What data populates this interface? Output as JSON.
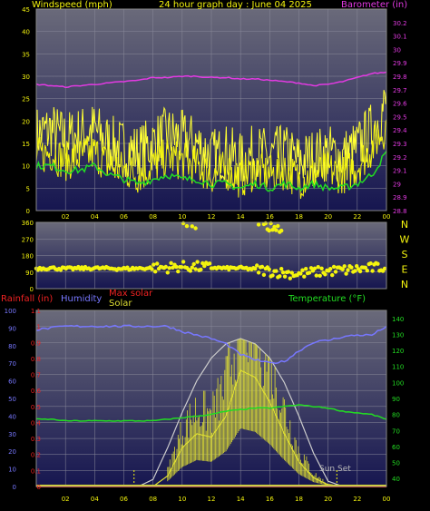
{
  "header": {
    "windspeed_label": "Windspeed (mph)",
    "title": "24 hour graph day : June 04 2025",
    "barometer_label": "Barometer (in)"
  },
  "colors": {
    "wind": "#f4f40e",
    "gust": "#ffff33",
    "avg": "#22dd22",
    "barometer": "#e23ae2",
    "humidity": "#7777ff",
    "maxsolar": "#cccccc",
    "solar": "#dede33",
    "temperature": "#22dd22",
    "rain": "#ee2222",
    "bg_top": "#6a6a7a",
    "bg_bottom": "#161650"
  },
  "labels": {
    "x_ticks": [
      "02",
      "04",
      "06",
      "08",
      "10",
      "12",
      "14",
      "16",
      "18",
      "20",
      "22",
      "00"
    ],
    "direction_letters": [
      "N",
      "W",
      "S",
      "E",
      "N"
    ],
    "rainfall": "Rainfall (in)",
    "humidity": "Humidity",
    "max_solar": "Max solar",
    "solar": "Solar",
    "temperature": "Temperature (°F)",
    "sunset": "Sun Set"
  },
  "chart_data": [
    {
      "type": "line",
      "title": "Windspeed (mph)",
      "xlabel": "hour",
      "ylabel": "Windspeed (mph)",
      "ylim": [
        0,
        45
      ],
      "y_ticks": [
        0,
        5,
        10,
        15,
        20,
        25,
        30,
        35,
        40,
        45
      ],
      "y2label": "Barometer (in)",
      "y2lim": [
        28.8,
        30.3
      ],
      "y2_ticks": [
        "28.8",
        "28.9",
        "29",
        "29.1",
        "29.2",
        "29.3",
        "29.4",
        "29.5",
        "29.6",
        "29.7",
        "29.8",
        "29.9",
        "30",
        "30.1",
        "30.2"
      ],
      "x": [
        0,
        1,
        2,
        3,
        4,
        5,
        6,
        7,
        8,
        9,
        10,
        11,
        12,
        13,
        14,
        15,
        16,
        17,
        18,
        19,
        20,
        21,
        22,
        23,
        24
      ],
      "series": [
        {
          "values": [
            17,
            18,
            16,
            17,
            18,
            15,
            14,
            13,
            15,
            17,
            16,
            15,
            12,
            13,
            11,
            13,
            12,
            13,
            11,
            12,
            13,
            12,
            14,
            18,
            24
          ]
        },
        {
          "values": [
            12,
            13,
            11,
            12,
            13,
            10,
            9,
            8,
            10,
            12,
            11,
            10,
            8,
            9,
            7,
            9,
            8,
            9,
            7,
            8,
            9,
            8,
            10,
            14,
            19
          ]
        },
        {
          "values": [
            10,
            10,
            9,
            9,
            10,
            8,
            7,
            6,
            7,
            8,
            7,
            7,
            6,
            6,
            5,
            6,
            5,
            6,
            5,
            6,
            5,
            5,
            6,
            8,
            13
          ]
        },
        {
          "values": [
            29.74,
            29.73,
            29.72,
            29.73,
            29.74,
            29.75,
            29.76,
            29.77,
            29.79,
            29.79,
            29.8,
            29.8,
            29.79,
            29.79,
            29.78,
            29.78,
            29.77,
            29.76,
            29.75,
            29.73,
            29.74,
            29.76,
            29.79,
            29.82,
            29.83
          ]
        }
      ]
    },
    {
      "type": "scatter",
      "title": "Wind direction",
      "ylim": [
        0,
        360
      ],
      "y_ticks": [
        0,
        90,
        180,
        270,
        360
      ],
      "x": [
        0,
        1,
        2,
        3,
        4,
        5,
        6,
        7,
        8,
        9,
        10,
        11,
        12,
        13,
        14,
        15,
        16,
        17,
        18,
        19,
        20,
        21,
        22,
        23,
        24
      ],
      "series": [
        {
          "values": [
            110,
            112,
            108,
            110,
            111,
            110,
            108,
            110,
            112,
            115,
            120,
            118,
            115,
            110,
            112,
            105,
            95,
            85,
            80,
            90,
            95,
            100,
            105,
            112,
            118
          ]
        },
        {
          "values": [
            null,
            null,
            null,
            null,
            null,
            null,
            null,
            null,
            340,
            null,
            345,
            330,
            null,
            null,
            null,
            340,
            335,
            325,
            null,
            null,
            null,
            null,
            null,
            null,
            null
          ]
        }
      ]
    },
    {
      "type": "line",
      "title": "Rainfall / Humidity / Solar / Temperature",
      "ylim": [
        0,
        1.1
      ],
      "y_ticks": [
        0,
        0.1,
        0.2,
        0.3,
        0.4,
        0.5,
        0.6,
        0.7,
        0.8,
        0.9,
        1,
        1.1
      ],
      "humidity_ticks": [
        0,
        10,
        20,
        30,
        40,
        50,
        60,
        70,
        80,
        90,
        100
      ],
      "y2lim": [
        35,
        145
      ],
      "y2_ticks": [
        40,
        50,
        60,
        70,
        80,
        90,
        100,
        110,
        120,
        130,
        140
      ],
      "x": [
        0,
        1,
        2,
        3,
        4,
        5,
        6,
        7,
        8,
        9,
        10,
        11,
        12,
        13,
        14,
        15,
        16,
        17,
        18,
        19,
        20,
        21,
        22,
        23,
        24
      ],
      "sunset_hour": 20.6,
      "series": [
        {
          "values": [
            89,
            90,
            91,
            91,
            91,
            91,
            91,
            91,
            91,
            91,
            88,
            86,
            84,
            81,
            75,
            72,
            70,
            71,
            77,
            82,
            83,
            85,
            86,
            86,
            91
          ]
        },
        {
          "values": [
            0,
            0,
            0,
            0,
            0,
            0,
            0,
            0,
            4,
            22,
            42,
            60,
            73,
            81,
            84,
            81,
            73,
            59,
            40,
            19,
            3,
            0,
            0,
            0,
            0
          ]
        },
        {
          "values": [
            0,
            0,
            0,
            0,
            0,
            0,
            0,
            0,
            0,
            6,
            22,
            30,
            28,
            40,
            66,
            62,
            48,
            30,
            14,
            5,
            1,
            0,
            0,
            0,
            0
          ]
        },
        {
          "values": [
            77,
            77,
            76,
            76,
            76,
            76,
            76,
            76,
            76,
            77,
            78,
            79,
            80,
            82,
            83,
            84,
            84,
            85,
            86,
            85,
            84,
            82,
            81,
            80,
            77
          ]
        },
        {
          "values": [
            0,
            0,
            0,
            0,
            0,
            0,
            0,
            0,
            0,
            0,
            0,
            0,
            0,
            0,
            0,
            0,
            0,
            0,
            0,
            0,
            0,
            0,
            0,
            0,
            0
          ]
        }
      ]
    }
  ]
}
